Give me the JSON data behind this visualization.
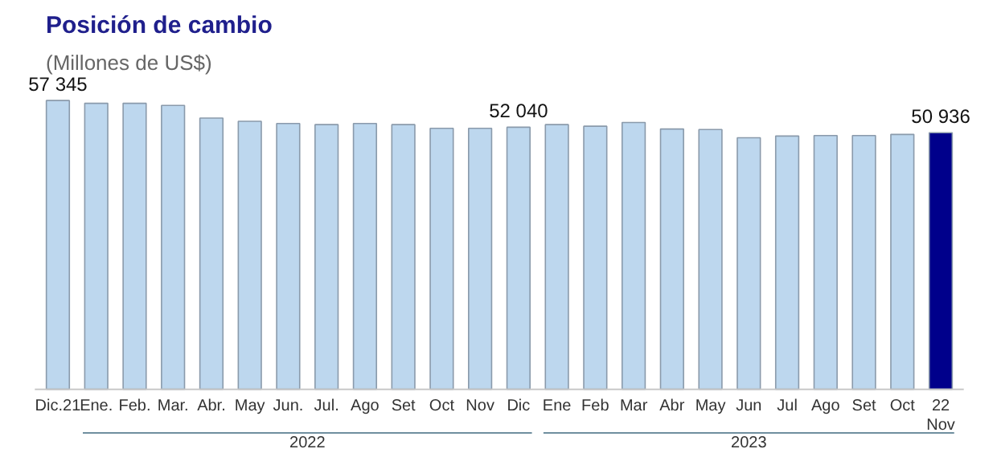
{
  "chart_data": {
    "type": "bar",
    "title": "Posición de cambio",
    "subtitle": "(Millones de US$)",
    "categories": [
      "Dic.21",
      "Ene.",
      "Feb.",
      "Mar.",
      "Abr.",
      "May",
      "Jun.",
      "Jul.",
      "Ago",
      "Set",
      "Oct",
      "Nov",
      "Dic",
      "Ene",
      "Feb",
      "Mar",
      "Abr",
      "May",
      "Jun",
      "Jul",
      "Ago",
      "Set",
      "Oct",
      "22\nNov"
    ],
    "values": [
      57345,
      56790,
      56790,
      56370,
      53860,
      53210,
      52790,
      52560,
      52790,
      52560,
      51820,
      51820,
      52040,
      52560,
      52240,
      52990,
      51690,
      51590,
      49960,
      50290,
      50380,
      50380,
      50610,
      50936
    ],
    "value_labels": [
      "57 345",
      null,
      null,
      null,
      null,
      null,
      null,
      null,
      null,
      null,
      null,
      null,
      "52 040",
      null,
      null,
      null,
      null,
      null,
      null,
      null,
      null,
      null,
      null,
      "50 936"
    ],
    "colors": [
      "#bdd7ee",
      "#bdd7ee",
      "#bdd7ee",
      "#bdd7ee",
      "#bdd7ee",
      "#bdd7ee",
      "#bdd7ee",
      "#bdd7ee",
      "#bdd7ee",
      "#bdd7ee",
      "#bdd7ee",
      "#bdd7ee",
      "#bdd7ee",
      "#bdd7ee",
      "#bdd7ee",
      "#bdd7ee",
      "#bdd7ee",
      "#bdd7ee",
      "#bdd7ee",
      "#bdd7ee",
      "#bdd7ee",
      "#bdd7ee",
      "#bdd7ee",
      "#00008b"
    ],
    "annotations": [
      "2022",
      "2023"
    ],
    "grid": false
  }
}
